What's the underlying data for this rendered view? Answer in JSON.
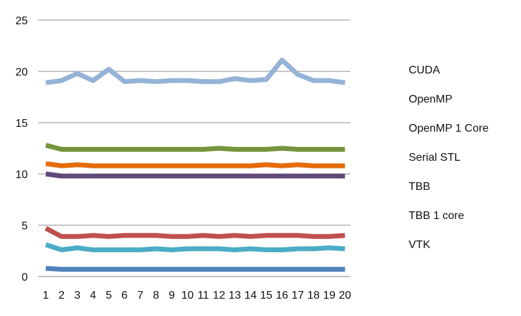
{
  "chart_data": {
    "type": "line",
    "title": "",
    "xlabel": "",
    "ylabel": "",
    "x": [
      "1",
      "2",
      "3",
      "4",
      "5",
      "6",
      "7",
      "8",
      "9",
      "10",
      "11",
      "12",
      "13",
      "14",
      "15",
      "16",
      "17",
      "18",
      "19",
      "20"
    ],
    "ylim": [
      0,
      25
    ],
    "yticks": [
      "0",
      "5",
      "10",
      "15",
      "20",
      "25"
    ],
    "grid": "horizontal",
    "legend": "right",
    "legend_entries": [
      "CUDA",
      "OpenMP",
      "OpenMP 1 Core",
      "Serial STL",
      "TBB",
      "TBB 1 core",
      "VTK"
    ],
    "series": [
      {
        "color": "#95b3d7",
        "values": [
          18.9,
          19.1,
          19.8,
          19.1,
          20.2,
          19.0,
          19.1,
          19.0,
          19.1,
          19.1,
          19.0,
          19.0,
          19.3,
          19.1,
          19.2,
          21.1,
          19.7,
          19.1,
          19.1,
          18.9
        ]
      },
      {
        "color": "#77933c",
        "values": [
          12.8,
          12.4,
          12.4,
          12.4,
          12.4,
          12.4,
          12.4,
          12.4,
          12.4,
          12.4,
          12.4,
          12.5,
          12.4,
          12.4,
          12.4,
          12.5,
          12.4,
          12.4,
          12.4,
          12.4
        ]
      },
      {
        "color": "#e46c0a",
        "values": [
          11.0,
          10.8,
          10.9,
          10.8,
          10.8,
          10.8,
          10.8,
          10.8,
          10.8,
          10.8,
          10.8,
          10.8,
          10.8,
          10.8,
          10.9,
          10.8,
          10.9,
          10.8,
          10.8,
          10.8
        ]
      },
      {
        "color": "#604a7b",
        "values": [
          10.0,
          9.8,
          9.8,
          9.8,
          9.8,
          9.8,
          9.8,
          9.8,
          9.8,
          9.8,
          9.8,
          9.8,
          9.8,
          9.8,
          9.8,
          9.8,
          9.8,
          9.8,
          9.8,
          9.8
        ]
      },
      {
        "color": "#4bacc6",
        "values": [
          3.1,
          2.6,
          2.8,
          2.6,
          2.6,
          2.6,
          2.6,
          2.7,
          2.6,
          2.7,
          2.7,
          2.7,
          2.6,
          2.7,
          2.6,
          2.6,
          2.7,
          2.7,
          2.8,
          2.7
        ]
      },
      {
        "color": "#c0504d",
        "values": [
          4.7,
          3.9,
          3.9,
          4.0,
          3.9,
          4.0,
          4.0,
          4.0,
          3.9,
          3.9,
          4.0,
          3.9,
          4.0,
          3.9,
          4.0,
          4.0,
          4.0,
          3.9,
          3.9,
          4.0
        ]
      },
      {
        "color": "#4f81bd",
        "values": [
          0.8,
          0.7,
          0.7,
          0.7,
          0.7,
          0.7,
          0.7,
          0.7,
          0.7,
          0.7,
          0.7,
          0.7,
          0.7,
          0.7,
          0.7,
          0.7,
          0.7,
          0.7,
          0.7,
          0.7
        ]
      }
    ]
  }
}
